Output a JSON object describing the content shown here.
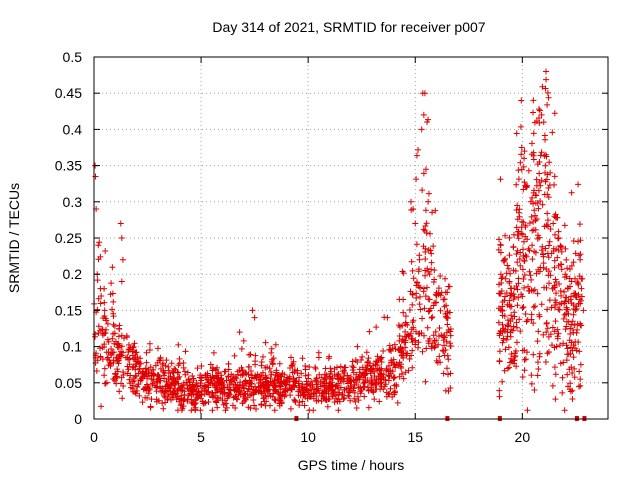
{
  "chart_data": {
    "type": "scatter",
    "title": "Day 314 of 2021, SRMTID for receiver p007",
    "xlabel": "GPS time / hours",
    "ylabel": "SRMTID / TECUs",
    "xlim": [
      0,
      24
    ],
    "ylim": [
      0,
      0.5
    ],
    "grid": true,
    "marker": "+",
    "color": "#e00000",
    "x_ticks": [
      0,
      5,
      10,
      15,
      20
    ],
    "x_tick_labels": [
      "0",
      "5",
      "10",
      "15",
      "20"
    ],
    "y_ticks": [
      0,
      0.05,
      0.1,
      0.15,
      0.2,
      0.25,
      0.3,
      0.35,
      0.4,
      0.45,
      0.5
    ],
    "y_tick_labels": [
      "0",
      "0.05",
      "0.1",
      "0.15",
      "0.2",
      "0.25",
      "0.3",
      "0.35",
      "0.4",
      "0.45",
      "0.5"
    ],
    "series": [
      {
        "name": "SRMTID",
        "profile_hours": [
          0,
          0.3,
          0.8,
          1.5,
          2.5,
          3.5,
          4.5,
          5.5,
          6.5,
          7.5,
          8.5,
          9.5,
          10.5,
          11.5,
          12.5,
          13.5,
          14.3,
          15.0,
          15.4,
          15.8,
          16.2,
          16.7
        ],
        "profile_values": [
          0.13,
          0.12,
          0.1,
          0.07,
          0.06,
          0.05,
          0.04,
          0.04,
          0.045,
          0.05,
          0.045,
          0.045,
          0.04,
          0.045,
          0.05,
          0.06,
          0.08,
          0.15,
          0.2,
          0.17,
          0.12,
          0.11
        ],
        "profile2_hours": [
          18.9,
          19.5,
          20.0,
          20.5,
          21.0,
          21.5,
          22.0,
          22.5,
          22.8
        ],
        "profile2_values": [
          0.15,
          0.14,
          0.22,
          0.27,
          0.25,
          0.2,
          0.14,
          0.15,
          0.16
        ],
        "sample_points": [
          [
            0.05,
            0.35
          ],
          [
            0.07,
            0.335
          ],
          [
            0.1,
            0.29
          ],
          [
            0.2,
            0.24
          ],
          [
            0.15,
            0.2
          ],
          [
            0.3,
            0.18
          ],
          [
            0.5,
            0.15
          ],
          [
            1.25,
            0.27
          ],
          [
            1.3,
            0.25
          ],
          [
            1.35,
            0.22
          ],
          [
            1.3,
            0.19
          ],
          [
            7.4,
            0.15
          ],
          [
            7.5,
            0.14
          ],
          [
            6.8,
            0.12
          ],
          [
            9.2,
            0.085
          ],
          [
            10.5,
            0.085
          ],
          [
            12.3,
            0.1
          ],
          [
            13.7,
            0.14
          ],
          [
            14.8,
            0.3
          ],
          [
            14.9,
            0.29
          ],
          [
            15.0,
            0.27
          ],
          [
            15.35,
            0.45
          ],
          [
            15.45,
            0.45
          ],
          [
            15.4,
            0.42
          ],
          [
            15.3,
            0.4
          ],
          [
            15.5,
            0.345
          ],
          [
            15.6,
            0.3
          ],
          [
            15.45,
            0.26
          ],
          [
            15.2,
            0.22
          ],
          [
            16.5,
            0.14
          ],
          [
            19.0,
            0.23
          ],
          [
            19.0,
            0.2
          ],
          [
            19.4,
            0.19
          ],
          [
            19.9,
            0.23
          ],
          [
            19.95,
            0.44
          ],
          [
            20.1,
            0.37
          ],
          [
            20.2,
            0.32
          ],
          [
            20.4,
            0.3
          ],
          [
            20.8,
            0.355
          ],
          [
            20.9,
            0.42
          ],
          [
            21.0,
            0.41
          ],
          [
            21.1,
            0.365
          ],
          [
            21.3,
            0.34
          ],
          [
            21.5,
            0.28
          ],
          [
            21.7,
            0.25
          ],
          [
            22.0,
            0.2
          ],
          [
            22.3,
            0.19
          ],
          [
            22.6,
            0.245
          ],
          [
            22.7,
            0.22
          ],
          [
            22.85,
            0.15
          ],
          [
            22.7,
            0.055
          ]
        ],
        "zero_marker_hours": [
          9.45,
          16.5,
          18.95,
          22.55,
          22.9
        ]
      }
    ]
  }
}
